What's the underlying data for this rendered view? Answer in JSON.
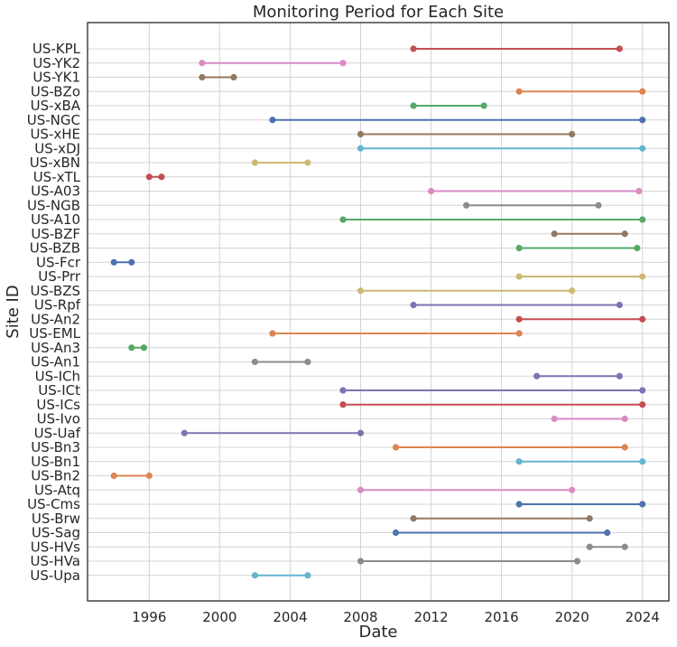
{
  "chart_data": {
    "type": "line",
    "title": "Monitoring Period for Each Site",
    "xlabel": "Date",
    "ylabel": "Site ID",
    "x_ticks": [
      "1996",
      "2000",
      "2004",
      "2008",
      "2012",
      "2016",
      "2020",
      "2024"
    ],
    "xlim": [
      1992.5,
      2025.5
    ],
    "grid": true,
    "legend": "none",
    "series": [
      {
        "site": "US-KPL",
        "start": 2011.0,
        "end": 2022.7,
        "color": "#c44e52"
      },
      {
        "site": "US-YK2",
        "start": 1999.0,
        "end": 2007.0,
        "color": "#da8bc3"
      },
      {
        "site": "US-YK1",
        "start": 1999.0,
        "end": 2000.8,
        "color": "#937860"
      },
      {
        "site": "US-BZo",
        "start": 2017.0,
        "end": 2024.0,
        "color": "#dd8452"
      },
      {
        "site": "US-xBA",
        "start": 2011.0,
        "end": 2015.0,
        "color": "#55a868"
      },
      {
        "site": "US-NGC",
        "start": 2003.0,
        "end": 2024.0,
        "color": "#4c72b0"
      },
      {
        "site": "US-xHE",
        "start": 2008.0,
        "end": 2020.0,
        "color": "#937860"
      },
      {
        "site": "US-xDJ",
        "start": 2008.0,
        "end": 2024.0,
        "color": "#64b5cd"
      },
      {
        "site": "US-xBN",
        "start": 2002.0,
        "end": 2005.0,
        "color": "#ccb974"
      },
      {
        "site": "US-xTL",
        "start": 1996.0,
        "end": 1996.7,
        "color": "#c44e52"
      },
      {
        "site": "US-A03",
        "start": 2012.0,
        "end": 2023.8,
        "color": "#da8bc3"
      },
      {
        "site": "US-NGB",
        "start": 2014.0,
        "end": 2021.5,
        "color": "#8c8c8c"
      },
      {
        "site": "US-A10",
        "start": 2007.0,
        "end": 2024.0,
        "color": "#55a868"
      },
      {
        "site": "US-BZF",
        "start": 2019.0,
        "end": 2023.0,
        "color": "#937860"
      },
      {
        "site": "US-BZB",
        "start": 2017.0,
        "end": 2023.7,
        "color": "#55a868"
      },
      {
        "site": "US-Fcr",
        "start": 1994.0,
        "end": 1995.0,
        "color": "#4c72b0"
      },
      {
        "site": "US-Prr",
        "start": 2017.0,
        "end": 2024.0,
        "color": "#ccb974"
      },
      {
        "site": "US-BZS",
        "start": 2008.0,
        "end": 2020.0,
        "color": "#ccb974"
      },
      {
        "site": "US-Rpf",
        "start": 2011.0,
        "end": 2022.7,
        "color": "#8172b3"
      },
      {
        "site": "US-An2",
        "start": 2017.0,
        "end": 2024.0,
        "color": "#c44e52"
      },
      {
        "site": "US-EML",
        "start": 2003.0,
        "end": 2017.0,
        "color": "#dd8452"
      },
      {
        "site": "US-An3",
        "start": 1995.0,
        "end": 1995.7,
        "color": "#55a868"
      },
      {
        "site": "US-An1",
        "start": 2002.0,
        "end": 2005.0,
        "color": "#8c8c8c"
      },
      {
        "site": "US-ICh",
        "start": 2018.0,
        "end": 2022.7,
        "color": "#8172b3"
      },
      {
        "site": "US-ICt",
        "start": 2007.0,
        "end": 2024.0,
        "color": "#8172b3"
      },
      {
        "site": "US-ICs",
        "start": 2007.0,
        "end": 2024.0,
        "color": "#c44e52"
      },
      {
        "site": "US-Ivo",
        "start": 2019.0,
        "end": 2023.0,
        "color": "#da8bc3"
      },
      {
        "site": "US-Uaf",
        "start": 1998.0,
        "end": 2008.0,
        "color": "#8172b3"
      },
      {
        "site": "US-Bn3",
        "start": 2010.0,
        "end": 2023.0,
        "color": "#dd8452"
      },
      {
        "site": "US-Bn1",
        "start": 2017.0,
        "end": 2024.0,
        "color": "#64b5cd"
      },
      {
        "site": "US-Bn2",
        "start": 1994.0,
        "end": 1996.0,
        "color": "#dd8452"
      },
      {
        "site": "US-Atq",
        "start": 2008.0,
        "end": 2020.0,
        "color": "#da8bc3"
      },
      {
        "site": "US-Cms",
        "start": 2017.0,
        "end": 2024.0,
        "color": "#4c72b0"
      },
      {
        "site": "US-Brw",
        "start": 2011.0,
        "end": 2021.0,
        "color": "#937860"
      },
      {
        "site": "US-Sag",
        "start": 2010.0,
        "end": 2022.0,
        "color": "#4c72b0"
      },
      {
        "site": "US-HVs",
        "start": 2021.0,
        "end": 2023.0,
        "color": "#8c8c8c"
      },
      {
        "site": "US-HVa",
        "start": 2008.0,
        "end": 2020.3,
        "color": "#8c8c8c"
      },
      {
        "site": "US-Upa",
        "start": 2002.0,
        "end": 2005.0,
        "color": "#64b5cd"
      }
    ]
  }
}
